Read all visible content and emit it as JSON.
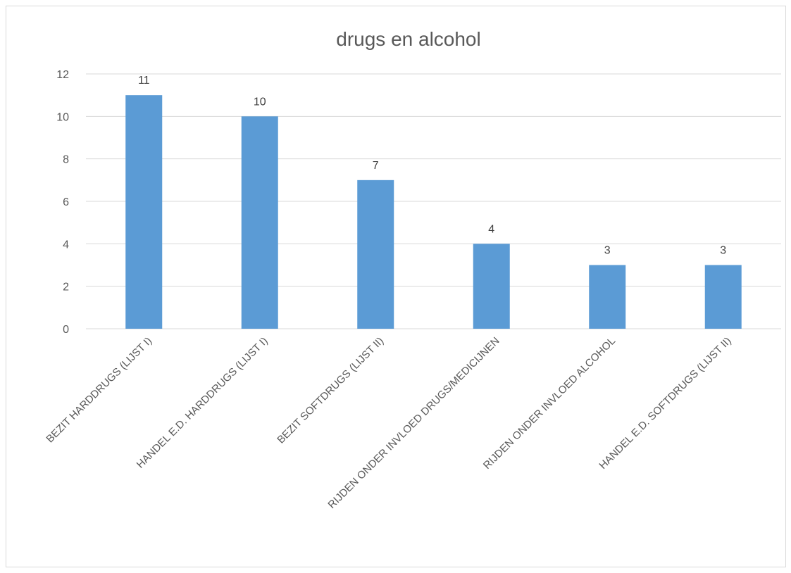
{
  "chart_data": {
    "type": "bar",
    "title": "drugs en alcohol",
    "xlabel": "",
    "ylabel": "",
    "categories": [
      "BEZIT HARDDRUGS (LIJST I)",
      "HANDEL E.D. HARDDRUGS (LIJST I)",
      "BEZIT SOFTDRUGS (LIJST II)",
      "RIJDEN ONDER INVLOED DRUGS/MEDICIJNEN",
      "RIJDEN ONDER INVLOED ALCOHOL",
      "HANDEL E.D. SOFTDRUGS (LIJST II)"
    ],
    "values": [
      11,
      10,
      7,
      4,
      3,
      3
    ],
    "ylim": [
      0,
      12
    ],
    "yticks": [
      0,
      2,
      4,
      6,
      8,
      10,
      12
    ],
    "grid": true,
    "legend": "none",
    "data_labels": true,
    "bar_color": "#5b9bd5"
  }
}
